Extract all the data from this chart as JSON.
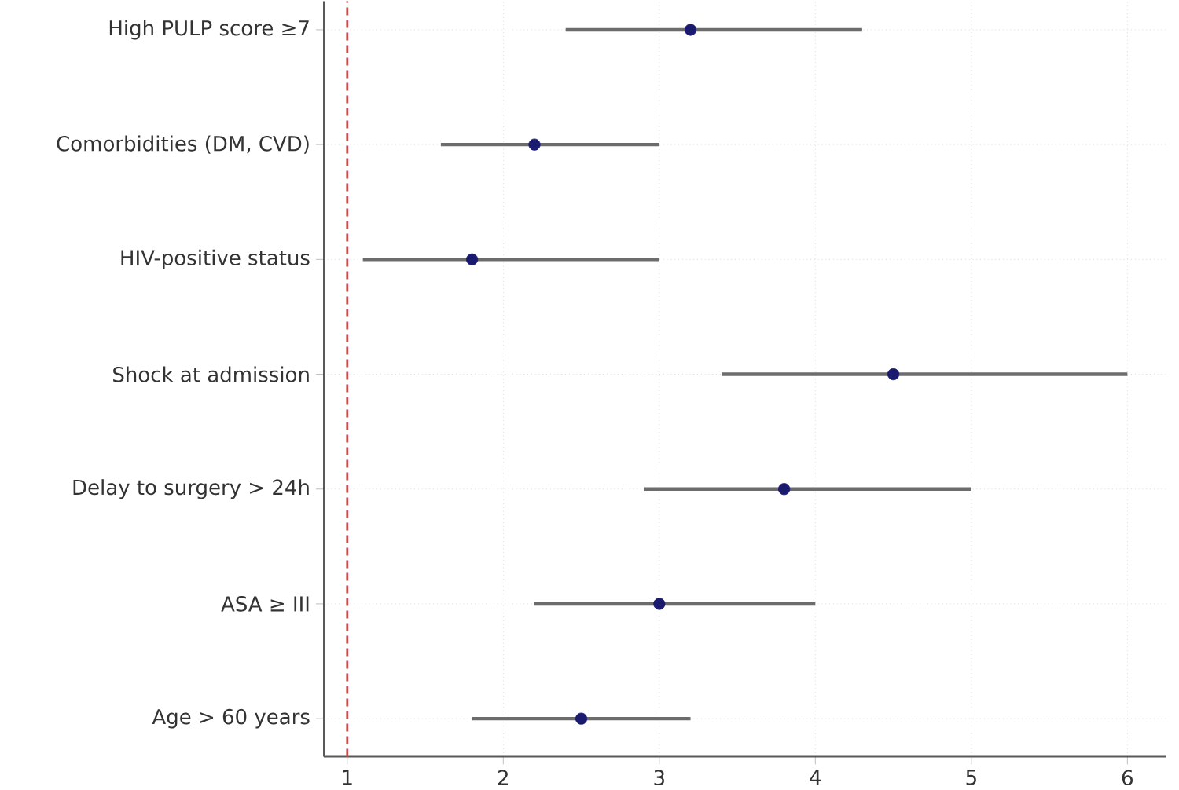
{
  "chart_data": {
    "type": "scatter",
    "orientation": "horizontal",
    "categories": [
      "High PULP score ≥7",
      "Comorbidities (DM, CVD)",
      "HIV-positive status",
      "Shock at admission",
      "Delay to surgery > 24h",
      "ASA ≥ III",
      "Age > 60 years"
    ],
    "values": [
      3.2,
      2.2,
      1.8,
      4.5,
      3.8,
      3.0,
      2.5
    ],
    "errors": [
      [
        2.4,
        4.3
      ],
      [
        1.6,
        3.0
      ],
      [
        1.1,
        3.0
      ],
      [
        3.4,
        6.0
      ],
      [
        2.9,
        5.0
      ],
      [
        2.2,
        4.0
      ],
      [
        1.8,
        3.2
      ]
    ],
    "color": "#1a1a6e",
    "xlim": [
      0.85,
      6.25
    ],
    "xticks": [
      1,
      2,
      3,
      4,
      5,
      6
    ],
    "ref_lines": [
      {
        "axis": "x",
        "value": 1,
        "color": "#c0504d",
        "line_style": "dashed"
      }
    ],
    "grid": true
  }
}
